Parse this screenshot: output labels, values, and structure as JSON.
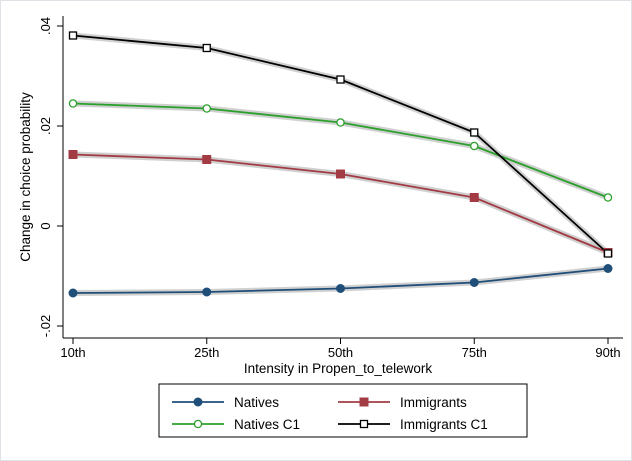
{
  "chart_data": {
    "type": "line",
    "xlabel": "Intensity in Propen_to_telework",
    "ylabel": "Change in choice probability",
    "categories": [
      "10th",
      "25th",
      "50th",
      "75th",
      "90th"
    ],
    "ylim": [
      -0.02,
      0.04
    ],
    "yticks": [
      -0.02,
      0,
      0.02,
      0.04
    ],
    "ytick_labels": [
      "-.02",
      "0",
      ".02",
      ".04"
    ],
    "grid": false,
    "legend_position": "bottom",
    "series": [
      {
        "name": "Natives",
        "values": [
          -0.0134,
          -0.0132,
          -0.0125,
          -0.0113,
          -0.0085
        ],
        "color": "#1f4e79",
        "marker": "filled-circle"
      },
      {
        "name": "Immigrants",
        "values": [
          0.0143,
          0.0133,
          0.0104,
          0.0057,
          -0.0053
        ],
        "color": "#a23b44",
        "marker": "filled-square"
      },
      {
        "name": "Natives C1",
        "values": [
          0.0245,
          0.0235,
          0.0207,
          0.016,
          0.0057
        ],
        "color": "#2ca02c",
        "marker": "hollow-circle"
      },
      {
        "name": "Immigrants C1",
        "values": [
          0.0381,
          0.0356,
          0.0293,
          0.0187,
          -0.0055
        ],
        "color": "#000000",
        "marker": "hollow-square"
      }
    ],
    "band_color": "#c8c8c8"
  }
}
